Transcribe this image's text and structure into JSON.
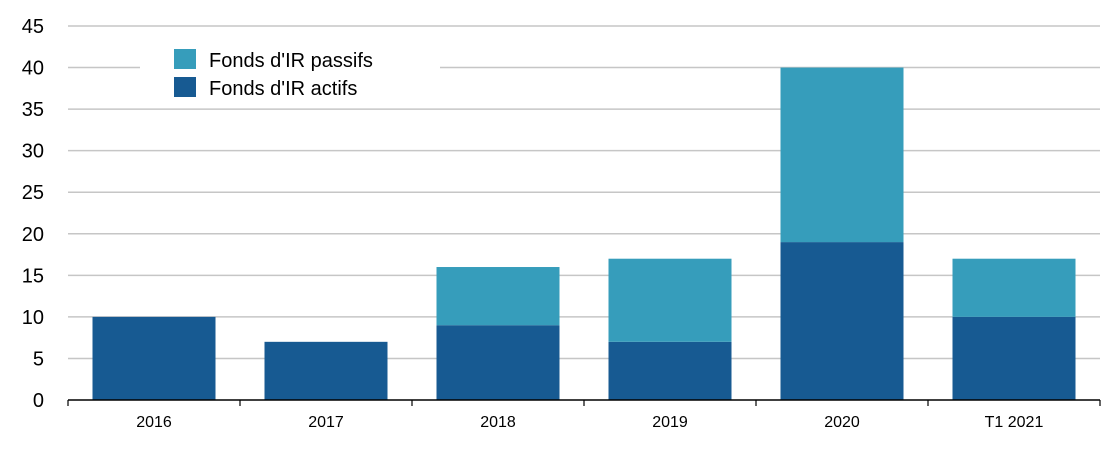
{
  "chart_data": {
    "type": "bar",
    "stacked": true,
    "categories": [
      "2016",
      "2017",
      "2018",
      "2019",
      "2020",
      "T1 2021"
    ],
    "series": [
      {
        "name": "Fonds d'IR actifs",
        "color": "#175a92",
        "values": [
          10,
          7,
          9,
          7,
          19,
          10
        ]
      },
      {
        "name": "Fonds d'IR passifs",
        "color": "#369dbb",
        "values": [
          0,
          0,
          7,
          10,
          21,
          7
        ]
      }
    ],
    "title": "",
    "xlabel": "",
    "ylabel": "",
    "ylim": [
      0,
      45
    ],
    "yticks": [
      "0",
      "5",
      "10",
      "15",
      "20",
      "25",
      "30",
      "35",
      "40",
      "45"
    ],
    "grid": true,
    "legend_position": "top-left"
  }
}
